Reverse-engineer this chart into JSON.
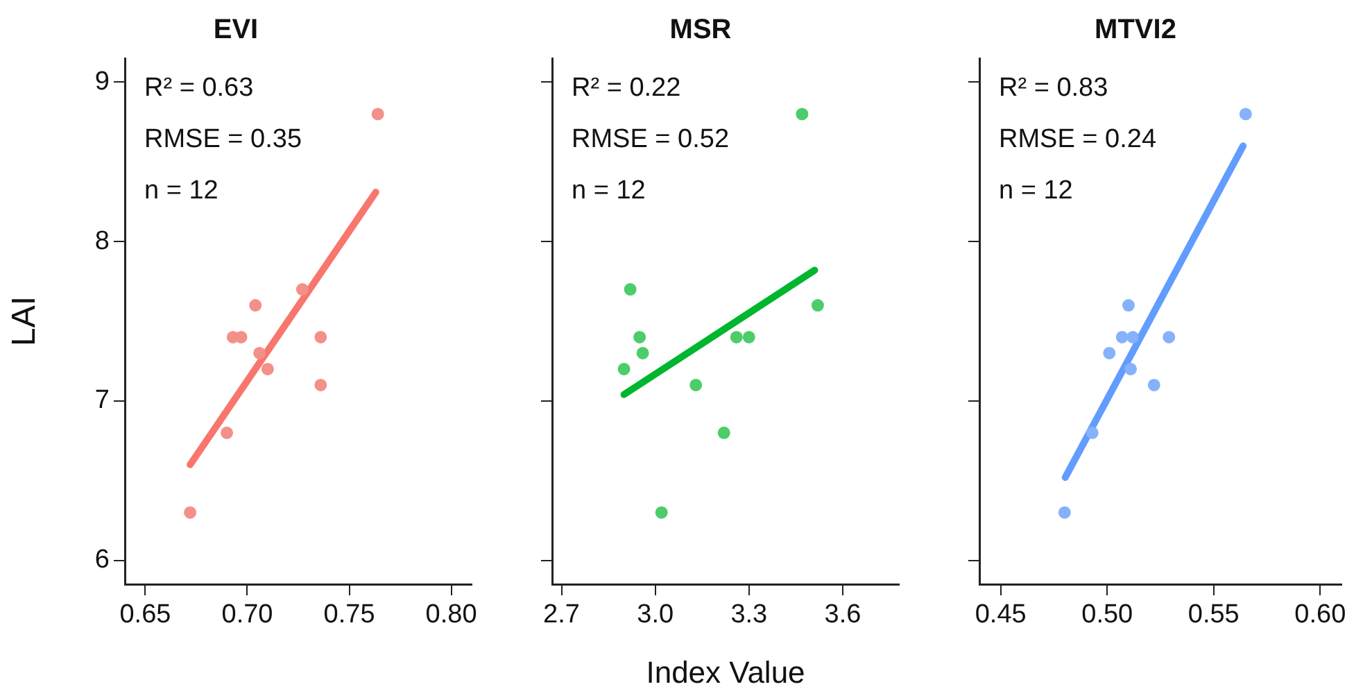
{
  "chart_data": [
    {
      "type": "scatter",
      "title": "EVI",
      "ylabel": "LAI",
      "xlim": [
        0.64,
        0.81
      ],
      "xticks": [
        {
          "value": 0.65,
          "label": "0.65"
        },
        {
          "value": 0.7,
          "label": "0.70"
        },
        {
          "value": 0.75,
          "label": "0.75"
        },
        {
          "value": 0.8,
          "label": "0.80"
        }
      ],
      "ylim": [
        5.85,
        9.15
      ],
      "yticks": [
        6,
        7,
        8,
        9
      ],
      "grid": false,
      "legend": false,
      "annotations": [
        "R² = 0.63",
        "RMSE = 0.35",
        "n = 12"
      ],
      "series": [
        {
          "color": "#f4908a",
          "marker": "circle",
          "x": [
            0.672,
            0.69,
            0.693,
            0.697,
            0.704,
            0.706,
            0.71,
            0.727,
            0.736,
            0.736,
            0.764
          ],
          "values": [
            6.3,
            6.8,
            7.4,
            7.4,
            7.6,
            7.3,
            7.2,
            7.7,
            7.4,
            7.1,
            8.8
          ]
        },
        {
          "type": "line",
          "marker": "none",
          "color": "#f8766d",
          "x": [
            0.672,
            0.763
          ],
          "values": [
            6.6,
            8.31
          ]
        }
      ]
    },
    {
      "type": "scatter",
      "title": "MSR",
      "xlabel": "Index Value",
      "xlim": [
        2.67,
        3.78
      ],
      "xticks": [
        2.7,
        {
          "value": 3.0,
          "label": "3.0"
        },
        3.3,
        3.6
      ],
      "ylim": [
        5.85,
        9.15
      ],
      "yticks": [
        6,
        7,
        8,
        9
      ],
      "tick_labels": "x",
      "grid": false,
      "legend": false,
      "annotations": [
        "R² = 0.22",
        "RMSE = 0.52",
        "n = 12"
      ],
      "series": [
        {
          "color": "#4ccd6a",
          "marker": "circle",
          "x": [
            2.9,
            2.92,
            2.95,
            2.96,
            3.02,
            3.13,
            3.22,
            3.26,
            3.3,
            3.47,
            3.52
          ],
          "values": [
            7.2,
            7.7,
            7.4,
            7.3,
            6.3,
            7.1,
            6.8,
            7.4,
            7.4,
            8.8,
            7.6
          ]
        },
        {
          "type": "line",
          "marker": "none",
          "color": "#00b62f",
          "x": [
            2.9,
            3.51
          ],
          "values": [
            7.04,
            7.82
          ]
        }
      ]
    },
    {
      "type": "scatter",
      "title": "MTVI2",
      "xlim": [
        0.44,
        0.61
      ],
      "xticks": [
        0.45,
        {
          "value": 0.5,
          "label": "0.50"
        },
        0.55,
        {
          "value": 0.6,
          "label": "0.60"
        }
      ],
      "ylim": [
        5.85,
        9.15
      ],
      "yticks": [
        6,
        7,
        8,
        9
      ],
      "tick_labels": "x",
      "grid": false,
      "legend": false,
      "annotations": [
        "R² = 0.83",
        "RMSE = 0.24",
        "n = 12"
      ],
      "series": [
        {
          "color": "#85b2fa",
          "marker": "circle",
          "x": [
            0.48,
            0.493,
            0.501,
            0.507,
            0.512,
            0.51,
            0.511,
            0.522,
            0.529,
            0.565
          ],
          "values": [
            6.3,
            6.8,
            7.3,
            7.4,
            7.4,
            7.6,
            7.2,
            7.1,
            7.4,
            8.8
          ]
        },
        {
          "type": "line",
          "marker": "none",
          "color": "#619cff",
          "x": [
            0.4803,
            0.5638
          ],
          "values": [
            6.52,
            8.6
          ]
        }
      ]
    }
  ]
}
